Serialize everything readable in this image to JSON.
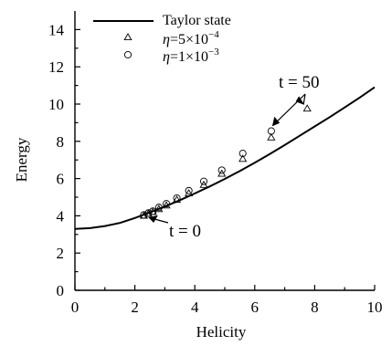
{
  "chart_data": {
    "type": "line",
    "xlabel": "Helicity",
    "ylabel": "Energy",
    "xlim": [
      0,
      10
    ],
    "ylim": [
      0,
      15
    ],
    "xticks": [
      0,
      2,
      4,
      6,
      8,
      10
    ],
    "yticks": [
      0,
      2,
      4,
      6,
      8,
      10,
      12,
      14
    ],
    "xtick_labels": [
      "0",
      "2",
      "4",
      "6",
      "8",
      "10"
    ],
    "ytick_labels": [
      "0",
      "2",
      "4",
      "6",
      "8",
      "10",
      "12",
      "14"
    ],
    "grid": false,
    "legend_position": "top-left",
    "series": [
      {
        "name": "Taylor state",
        "kind": "line",
        "x": [
          0,
          0.5,
          1,
          1.5,
          2,
          2.5,
          3,
          3.5,
          4,
          4.5,
          5,
          5.5,
          6,
          6.5,
          7,
          7.5,
          8,
          8.5,
          9,
          9.5,
          10
        ],
        "y": [
          3.3,
          3.34,
          3.45,
          3.62,
          3.88,
          4.18,
          4.5,
          4.84,
          5.2,
          5.58,
          5.98,
          6.4,
          6.85,
          7.32,
          7.8,
          8.3,
          8.8,
          9.3,
          9.82,
          10.35,
          10.9
        ]
      },
      {
        "name": "η=5×10⁻⁴",
        "legend_parts": [
          "η",
          "=5×10",
          "−4"
        ],
        "kind": "markers",
        "marker": "triangle",
        "x": [
          2.3,
          2.45,
          2.6,
          2.8,
          3.05,
          3.4,
          3.8,
          4.3,
          4.9,
          5.6,
          6.55,
          7.75
        ],
        "y": [
          4.0,
          4.1,
          4.2,
          4.35,
          4.55,
          4.85,
          5.2,
          5.65,
          6.25,
          7.05,
          8.2,
          9.75
        ]
      },
      {
        "name": "η=1×10⁻³",
        "legend_parts": [
          "η",
          "=1×10",
          "−3"
        ],
        "kind": "markers",
        "marker": "circle",
        "x": [
          2.3,
          2.45,
          2.6,
          2.8,
          3.05,
          3.4,
          3.8,
          4.3,
          4.9,
          5.6,
          6.55
        ],
        "y": [
          4.05,
          4.15,
          4.25,
          4.45,
          4.65,
          4.95,
          5.35,
          5.85,
          6.45,
          7.35,
          8.55
        ]
      }
    ],
    "annotations": [
      {
        "text": "t = 0",
        "target": [
          2.35,
          4.05
        ]
      },
      {
        "text": "t = 50",
        "targets": [
          [
            6.6,
            8.45
          ],
          [
            7.75,
            9.75
          ]
        ]
      }
    ]
  }
}
